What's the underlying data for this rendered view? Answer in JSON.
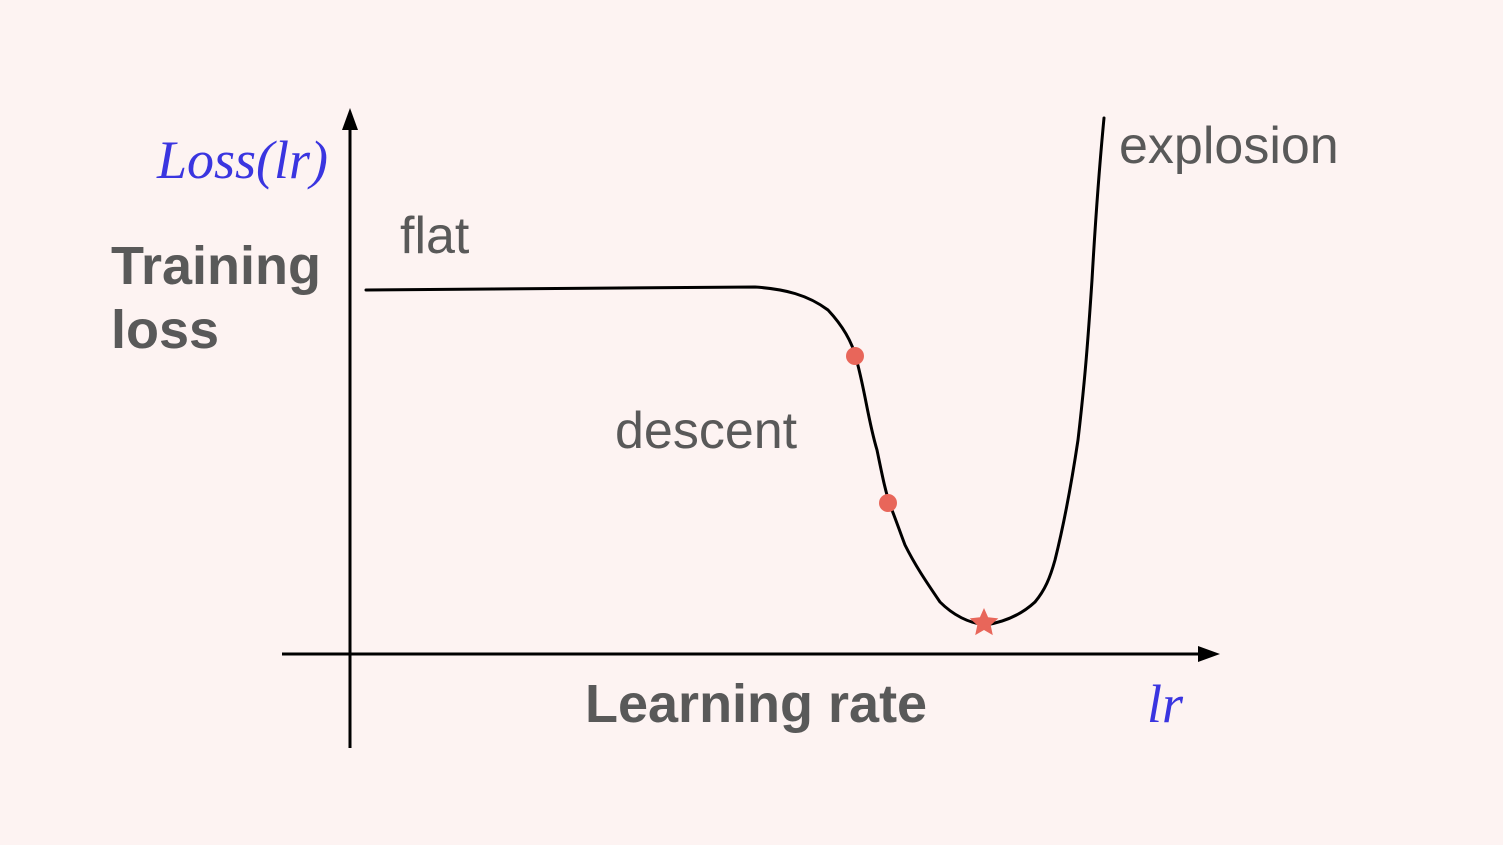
{
  "y_axis": {
    "math_label": "Loss(lr)",
    "label_line1": "Training",
    "label_line2": "loss"
  },
  "x_axis": {
    "label": "Learning rate",
    "math_label": "lr"
  },
  "regions": {
    "flat": "flat",
    "descent": "descent",
    "explosion": "explosion"
  },
  "colors": {
    "background": "#fdf3f2",
    "text": "#595959",
    "math_text": "#3a35e0",
    "marker": "#e8665a",
    "axis": "#000000"
  },
  "markers": [
    {
      "type": "dot"
    },
    {
      "type": "dot"
    },
    {
      "type": "star",
      "meaning": "minimum"
    }
  ]
}
